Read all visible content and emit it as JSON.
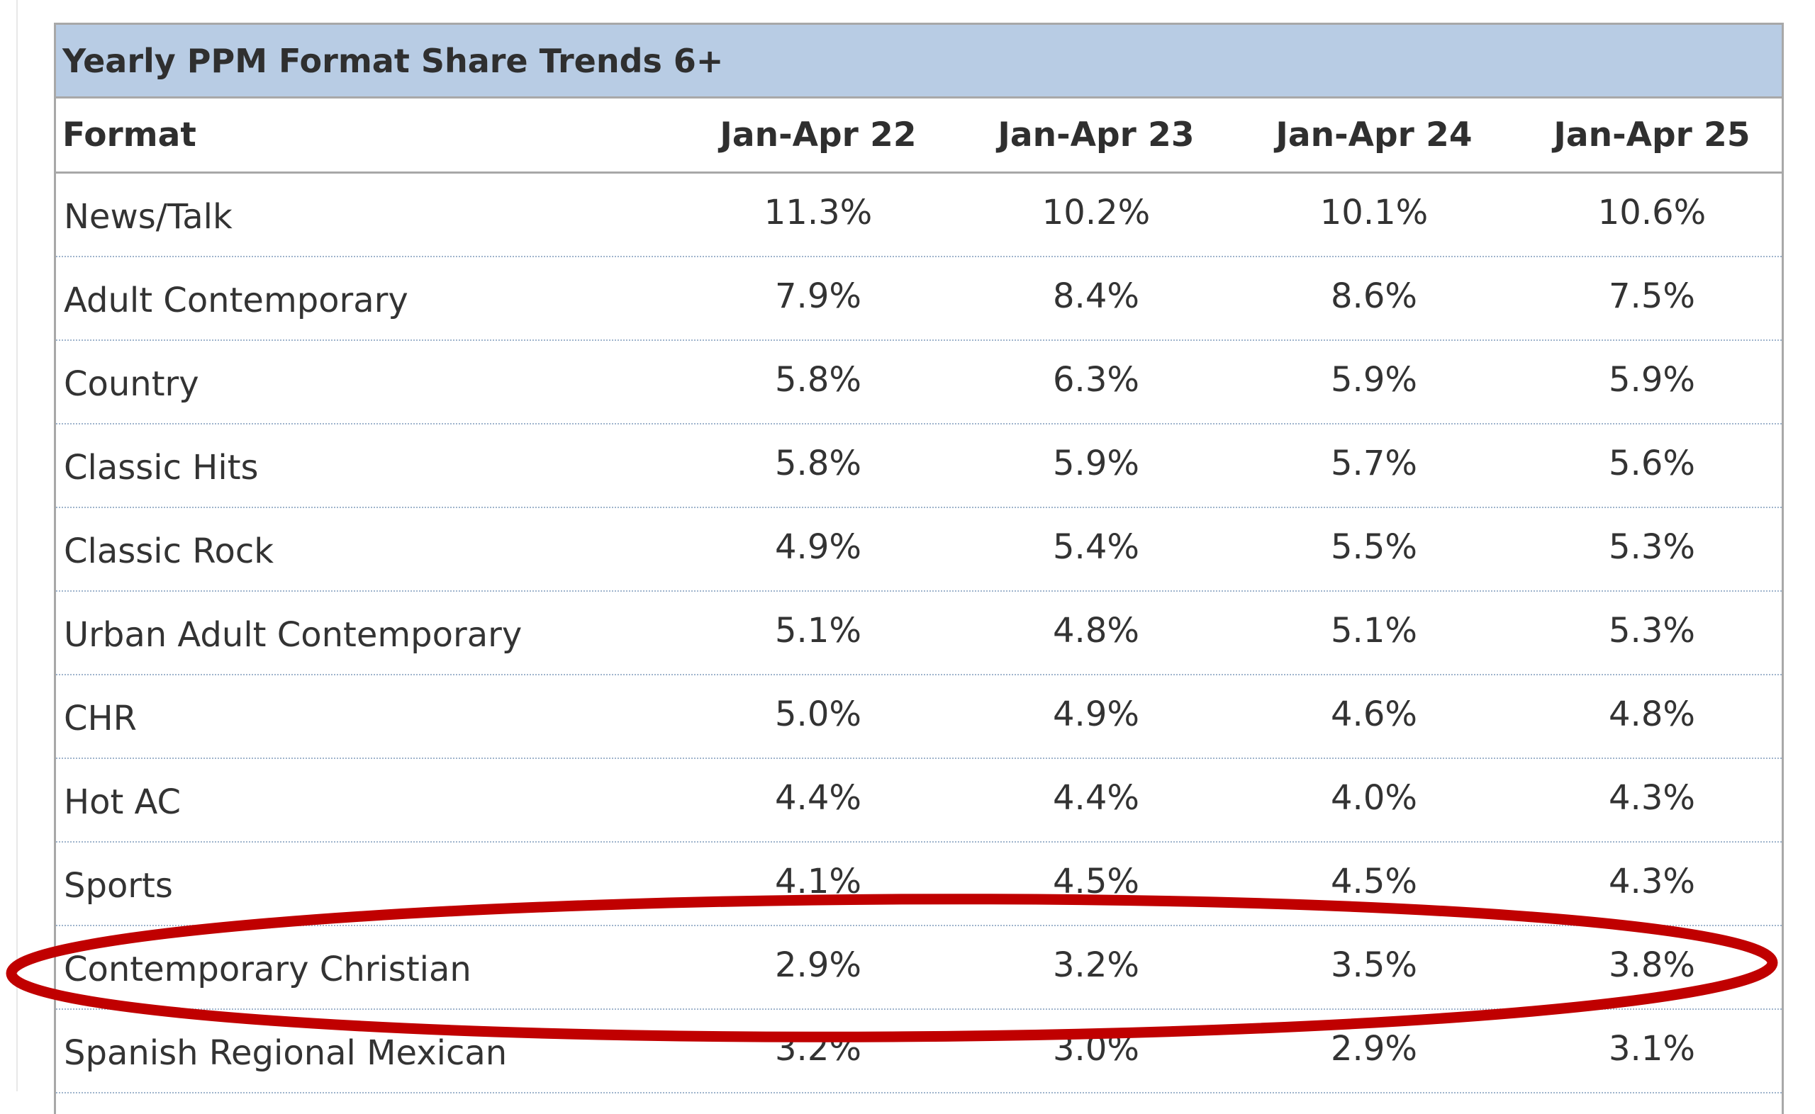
{
  "table": {
    "title": "Yearly PPM Format Share Trends 6+",
    "columns": [
      "Format",
      "Jan-Apr 22",
      "Jan-Apr 23",
      "Jan-Apr 24",
      "Jan-Apr 25"
    ],
    "rows": [
      {
        "format": "News/Talk",
        "values": [
          "11.3%",
          "10.2%",
          "10.1%",
          "10.6%"
        ]
      },
      {
        "format": "Adult Contemporary",
        "values": [
          "7.9%",
          "8.4%",
          "8.6%",
          "7.5%"
        ]
      },
      {
        "format": "Country",
        "values": [
          "5.8%",
          "6.3%",
          "5.9%",
          "5.9%"
        ]
      },
      {
        "format": "Classic Hits",
        "values": [
          "5.8%",
          "5.9%",
          "5.7%",
          "5.6%"
        ]
      },
      {
        "format": "Classic Rock",
        "values": [
          "4.9%",
          "5.4%",
          "5.5%",
          "5.3%"
        ]
      },
      {
        "format": "Urban Adult Contemporary",
        "values": [
          "5.1%",
          "4.8%",
          "5.1%",
          "5.3%"
        ]
      },
      {
        "format": "CHR",
        "values": [
          "5.0%",
          "4.9%",
          "4.6%",
          "4.8%"
        ]
      },
      {
        "format": "Hot AC",
        "values": [
          "4.4%",
          "4.4%",
          "4.0%",
          "4.3%"
        ]
      },
      {
        "format": "Sports",
        "values": [
          "4.1%",
          "4.5%",
          "4.5%",
          "4.3%"
        ]
      },
      {
        "format": "Contemporary Christian",
        "values": [
          "2.9%",
          "3.2%",
          "3.5%",
          "3.8%"
        ]
      },
      {
        "format": "Spanish Regional Mexican",
        "values": [
          "3.2%",
          "3.0%",
          "2.9%",
          "3.1%"
        ]
      }
    ]
  },
  "colors": {
    "title_bar": "#b8cce4",
    "highlight_ellipse": "#c00000",
    "grid_border": "#a8a8a8",
    "row_divider": "#9fb4cc"
  },
  "highlight": {
    "row_format": "Contemporary Christian",
    "shape": "ellipse"
  }
}
